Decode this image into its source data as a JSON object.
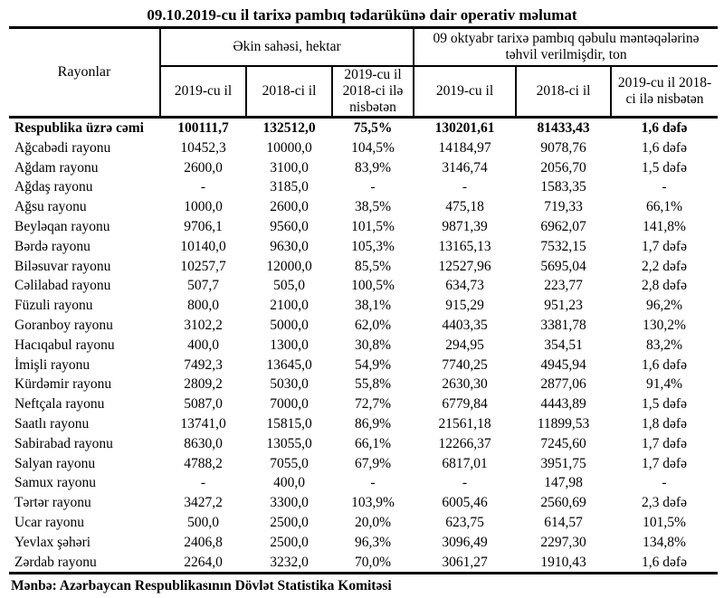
{
  "title": "09.10.2019-cu il tarixə pambıq tədarükünə dair operativ məlumat",
  "colors": {
    "background": "#ffffff",
    "text": "#000000",
    "border": "#000000"
  },
  "table": {
    "col_region": "Rayonlar",
    "group1": "Əkin sahəsi, hektar",
    "group2": "09 oktyabr tarixə pambıq qəbulu məntəqələrinə təhvil verilmişdir, ton",
    "sub_headers": [
      "2019-cu il",
      "2018-ci il",
      "2019-cu il 2018-ci ilə nisbətən"
    ],
    "rows": [
      [
        "Respublika üzrə cəmi",
        "100111,7",
        "132512,0",
        "75,5%",
        "130201,61",
        "81433,43",
        "1,6 dəfə"
      ],
      [
        "Ağcabədi rayonu",
        "10452,3",
        "10000,0",
        "104,5%",
        "14184,97",
        "9078,76",
        "1,6 dəfə"
      ],
      [
        "Ağdam rayonu",
        "2600,0",
        "3100,0",
        "83,9%",
        "3146,74",
        "2056,70",
        "1,5 dəfə"
      ],
      [
        "Ağdaş rayonu",
        "-",
        "3185,0",
        "-",
        "-",
        "1583,35",
        "-"
      ],
      [
        "Ağsu rayonu",
        "1000,0",
        "2600,0",
        "38,5%",
        "475,18",
        "719,33",
        "66,1%"
      ],
      [
        "Beyləqan rayonu",
        "9706,1",
        "9560,0",
        "101,5%",
        "9871,39",
        "6962,07",
        "141,8%"
      ],
      [
        "Bərdə rayonu",
        "10140,0",
        "9630,0",
        "105,3%",
        "13165,13",
        "7532,15",
        "1,7 dəfə"
      ],
      [
        "Biləsuvar rayonu",
        "10257,7",
        "12000,0",
        "85,5%",
        "12527,96",
        "5695,04",
        "2,2 dəfə"
      ],
      [
        "Cəlilabad rayonu",
        "507,7",
        "505,0",
        "100,5%",
        "634,73",
        "223,77",
        "2,8 dəfə"
      ],
      [
        "Füzuli rayonu",
        "800,0",
        "2100,0",
        "38,1%",
        "915,29",
        "951,23",
        "96,2%"
      ],
      [
        "Goranboy rayonu",
        "3102,2",
        "5000,0",
        "62,0%",
        "4403,35",
        "3381,78",
        "130,2%"
      ],
      [
        "Hacıqabul rayonu",
        "400,0",
        "1300,0",
        "30,8%",
        "294,95",
        "354,51",
        "83,2%"
      ],
      [
        "İmişli rayonu",
        "7492,3",
        "13645,0",
        "54,9%",
        "7740,25",
        "4945,94",
        "1,6 dəfə"
      ],
      [
        "Kürdəmir rayonu",
        "2809,2",
        "5030,0",
        "55,8%",
        "2630,30",
        "2877,06",
        "91,4%"
      ],
      [
        "Neftçala rayonu",
        "5087,0",
        "7000,0",
        "72,7%",
        "6779,84",
        "4443,89",
        "1,5 dəfə"
      ],
      [
        "Saatlı rayonu",
        "13741,0",
        "15815,0",
        "86,9%",
        "21561,18",
        "11899,53",
        "1,8 dəfə"
      ],
      [
        "Sabirabad rayonu",
        "8630,0",
        "13055,0",
        "66,1%",
        "12266,37",
        "7245,60",
        "1,7 dəfə"
      ],
      [
        "Salyan rayonu",
        "4788,2",
        "7055,0",
        "67,9%",
        "6817,01",
        "3951,75",
        "1,7 dəfə"
      ],
      [
        "Samux rayonu",
        "-",
        "400,0",
        "-",
        "-",
        "147,98",
        "-"
      ],
      [
        "Tərtər rayonu",
        "3427,2",
        "3300,0",
        "103,9%",
        "6005,46",
        "2560,69",
        "2,3 dəfə"
      ],
      [
        "Ucar rayonu",
        "500,0",
        "2500,0",
        "20,0%",
        "623,75",
        "614,57",
        "101,5%"
      ],
      [
        "Yevlax şəhəri",
        "2406,8",
        "2500,0",
        "96,3%",
        "3096,49",
        "2297,30",
        "134,8%"
      ],
      [
        "Zərdab rayonu",
        "2264,0",
        "3232,0",
        "70,0%",
        "3061,27",
        "1910,43",
        "1,6 dəfə"
      ]
    ]
  },
  "footer": "Mənbə: Azərbaycan Respublikasının Dövlət Statistika Komitəsi"
}
